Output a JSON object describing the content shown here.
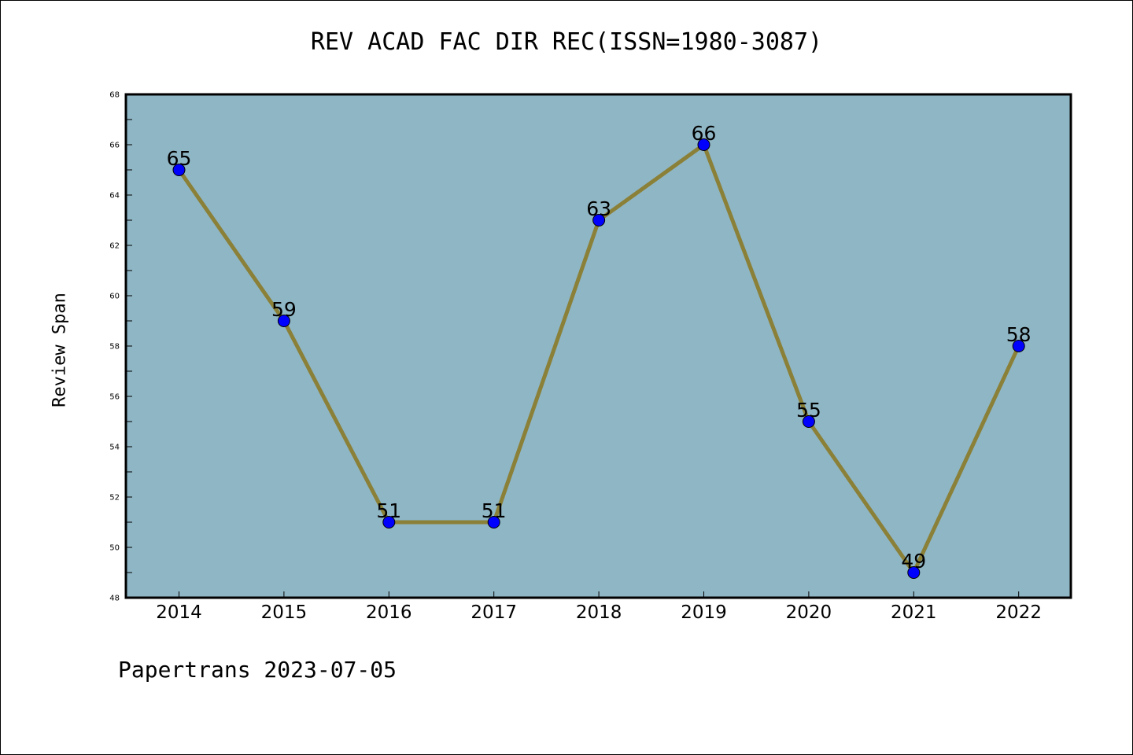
{
  "colors": {
    "plot_background": "#8fb6c5",
    "line": "#8b8038",
    "marker": "#0000ff",
    "axis": "#000000"
  },
  "chart_data": {
    "type": "line",
    "title": "REV ACAD FAC DIR REC(ISSN=1980-3087)",
    "xlabel": "",
    "ylabel": "Review Span",
    "categories": [
      "2014",
      "2015",
      "2016",
      "2017",
      "2018",
      "2019",
      "2020",
      "2021",
      "2022"
    ],
    "series": [
      {
        "values": [
          65,
          59,
          51,
          51,
          63,
          66,
          55,
          49,
          58
        ]
      }
    ],
    "ylim": [
      48,
      68
    ],
    "yticks": [
      48,
      50,
      52,
      54,
      56,
      58,
      60,
      62,
      64,
      66,
      68
    ],
    "data_labels": true,
    "grid": false,
    "legend": "none"
  },
  "footer": {
    "text": "Papertrans 2023-07-05"
  }
}
